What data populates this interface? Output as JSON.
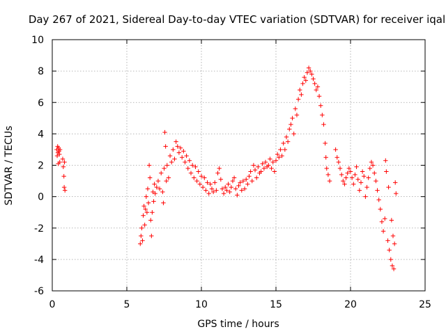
{
  "chart_data": {
    "type": "scatter",
    "title": "Day 267 of 2021, Sidereal Day-to-day VTEC variation (SDTVAR) for receiver iqal",
    "xlabel": "GPS time / hours",
    "ylabel": "SDTVAR / TECUs",
    "xlim": [
      0,
      25
    ],
    "ylim": [
      -6,
      10
    ],
    "x_ticks": [
      0,
      5,
      10,
      15,
      20,
      25
    ],
    "x_tick_labels": [
      "0",
      "5",
      "10",
      "15",
      "20",
      "25"
    ],
    "y_ticks": [
      -6,
      -4,
      -2,
      0,
      2,
      4,
      6,
      8,
      10
    ],
    "y_tick_labels": [
      "-6",
      "-4",
      "-2",
      "0",
      "2",
      "4",
      "6",
      "8",
      "10"
    ],
    "grid": true,
    "marker": "+",
    "color": "#ff0000",
    "series": [
      {
        "name": "SDTVAR",
        "points": [
          [
            0.3,
            3.0
          ],
          [
            0.33,
            2.6
          ],
          [
            0.36,
            3.2
          ],
          [
            0.38,
            2.8
          ],
          [
            0.4,
            2.1
          ],
          [
            0.42,
            3.1
          ],
          [
            0.45,
            2.9
          ],
          [
            0.48,
            2.7
          ],
          [
            0.5,
            2.2
          ],
          [
            0.52,
            3.0
          ],
          [
            0.7,
            2.4
          ],
          [
            0.74,
            1.9
          ],
          [
            0.78,
            1.3
          ],
          [
            0.8,
            0.6
          ],
          [
            0.82,
            2.2
          ],
          [
            0.85,
            0.4
          ],
          [
            5.9,
            -3.0
          ],
          [
            5.95,
            -2.5
          ],
          [
            6.0,
            -2.0
          ],
          [
            6.05,
            -2.8
          ],
          [
            6.1,
            -1.2
          ],
          [
            6.15,
            -0.6
          ],
          [
            6.2,
            -1.8
          ],
          [
            6.25,
            -0.8
          ],
          [
            6.3,
            0.0
          ],
          [
            6.35,
            -1.0
          ],
          [
            6.4,
            0.5
          ],
          [
            6.45,
            -0.4
          ],
          [
            6.5,
            2.0
          ],
          [
            6.55,
            1.2
          ],
          [
            6.6,
            -1.5
          ],
          [
            6.65,
            -2.5
          ],
          [
            6.7,
            -1.0
          ],
          [
            6.75,
            0.3
          ],
          [
            6.8,
            -0.3
          ],
          [
            6.85,
            0.8
          ],
          [
            6.9,
            0.2
          ],
          [
            7.0,
            0.6
          ],
          [
            7.1,
            1.0
          ],
          [
            7.2,
            0.5
          ],
          [
            7.3,
            1.5
          ],
          [
            7.4,
            0.3
          ],
          [
            7.45,
            -0.4
          ],
          [
            7.5,
            1.8
          ],
          [
            7.55,
            4.1
          ],
          [
            7.6,
            3.2
          ],
          [
            7.65,
            1.0
          ],
          [
            7.7,
            2.0
          ],
          [
            7.8,
            1.2
          ],
          [
            7.9,
            2.6
          ],
          [
            8.0,
            2.2
          ],
          [
            8.1,
            3.0
          ],
          [
            8.2,
            2.4
          ],
          [
            8.3,
            3.5
          ],
          [
            8.4,
            3.2
          ],
          [
            8.5,
            2.8
          ],
          [
            8.6,
            3.1
          ],
          [
            8.7,
            2.5
          ],
          [
            8.8,
            2.9
          ],
          [
            8.9,
            2.2
          ],
          [
            9.0,
            2.6
          ],
          [
            9.1,
            1.8
          ],
          [
            9.2,
            2.3
          ],
          [
            9.3,
            1.5
          ],
          [
            9.4,
            2.0
          ],
          [
            9.5,
            1.2
          ],
          [
            9.6,
            1.9
          ],
          [
            9.7,
            1.0
          ],
          [
            9.8,
            1.6
          ],
          [
            9.9,
            0.8
          ],
          [
            10.0,
            1.3
          ],
          [
            10.1,
            0.6
          ],
          [
            10.2,
            1.2
          ],
          [
            10.3,
            0.4
          ],
          [
            10.4,
            0.9
          ],
          [
            10.5,
            0.2
          ],
          [
            10.6,
            0.8
          ],
          [
            10.7,
            0.5
          ],
          [
            10.8,
            0.3
          ],
          [
            10.9,
            0.9
          ],
          [
            11.0,
            0.4
          ],
          [
            11.1,
            1.5
          ],
          [
            11.2,
            1.8
          ],
          [
            11.3,
            1.1
          ],
          [
            11.4,
            0.5
          ],
          [
            11.5,
            0.2
          ],
          [
            11.6,
            0.6
          ],
          [
            11.7,
            0.4
          ],
          [
            11.8,
            0.8
          ],
          [
            11.9,
            0.3
          ],
          [
            12.0,
            0.6
          ],
          [
            12.1,
            1.0
          ],
          [
            12.2,
            1.2
          ],
          [
            12.3,
            0.5
          ],
          [
            12.4,
            0.1
          ],
          [
            12.5,
            0.7
          ],
          [
            12.6,
            0.9
          ],
          [
            12.7,
            0.4
          ],
          [
            12.8,
            1.0
          ],
          [
            12.9,
            0.5
          ],
          [
            13.0,
            1.1
          ],
          [
            13.1,
            0.8
          ],
          [
            13.2,
            1.3
          ],
          [
            13.3,
            1.6
          ],
          [
            13.4,
            1.0
          ],
          [
            13.5,
            2.0
          ],
          [
            13.6,
            1.7
          ],
          [
            13.7,
            1.2
          ],
          [
            13.8,
            1.9
          ],
          [
            13.9,
            1.5
          ],
          [
            14.0,
            1.6
          ],
          [
            14.1,
            2.1
          ],
          [
            14.2,
            1.8
          ],
          [
            14.3,
            2.2
          ],
          [
            14.4,
            1.9
          ],
          [
            14.5,
            2.0
          ],
          [
            14.6,
            2.4
          ],
          [
            14.7,
            1.8
          ],
          [
            14.8,
            2.2
          ],
          [
            14.9,
            1.6
          ],
          [
            15.0,
            2.3
          ],
          [
            15.1,
            2.7
          ],
          [
            15.2,
            2.5
          ],
          [
            15.3,
            3.0
          ],
          [
            15.4,
            2.6
          ],
          [
            15.5,
            3.4
          ],
          [
            15.6,
            3.0
          ],
          [
            15.7,
            3.8
          ],
          [
            15.8,
            3.5
          ],
          [
            15.9,
            4.3
          ],
          [
            16.0,
            4.6
          ],
          [
            16.1,
            5.0
          ],
          [
            16.2,
            4.0
          ],
          [
            16.3,
            5.6
          ],
          [
            16.4,
            5.2
          ],
          [
            16.5,
            6.2
          ],
          [
            16.6,
            6.8
          ],
          [
            16.7,
            6.5
          ],
          [
            16.8,
            7.2
          ],
          [
            16.9,
            7.6
          ],
          [
            17.0,
            7.4
          ],
          [
            17.1,
            7.9
          ],
          [
            17.2,
            8.2
          ],
          [
            17.3,
            8.0
          ],
          [
            17.4,
            7.8
          ],
          [
            17.5,
            7.5
          ],
          [
            17.6,
            7.2
          ],
          [
            17.7,
            6.8
          ],
          [
            17.8,
            7.0
          ],
          [
            17.9,
            6.4
          ],
          [
            18.0,
            5.8
          ],
          [
            18.1,
            5.2
          ],
          [
            18.2,
            4.6
          ],
          [
            18.3,
            3.4
          ],
          [
            18.35,
            2.5
          ],
          [
            18.4,
            1.8
          ],
          [
            18.5,
            1.4
          ],
          [
            18.6,
            1.0
          ],
          [
            19.0,
            3.0
          ],
          [
            19.1,
            2.5
          ],
          [
            19.2,
            2.2
          ],
          [
            19.3,
            1.8
          ],
          [
            19.4,
            1.4
          ],
          [
            19.5,
            1.0
          ],
          [
            19.6,
            0.8
          ],
          [
            19.7,
            1.2
          ],
          [
            19.8,
            1.5
          ],
          [
            19.9,
            1.8
          ],
          [
            20.0,
            1.6
          ],
          [
            20.1,
            1.2
          ],
          [
            20.2,
            0.8
          ],
          [
            20.3,
            1.4
          ],
          [
            20.4,
            1.9
          ],
          [
            20.5,
            1.1
          ],
          [
            20.6,
            0.4
          ],
          [
            20.7,
            0.9
          ],
          [
            20.8,
            1.6
          ],
          [
            20.9,
            1.3
          ],
          [
            21.0,
            0.0
          ],
          [
            21.1,
            0.6
          ],
          [
            21.2,
            1.2
          ],
          [
            21.3,
            1.8
          ],
          [
            21.4,
            2.2
          ],
          [
            21.5,
            2.0
          ],
          [
            21.6,
            1.5
          ],
          [
            21.7,
            1.0
          ],
          [
            21.8,
            0.4
          ],
          [
            21.9,
            -0.2
          ],
          [
            22.0,
            -0.8
          ],
          [
            22.1,
            -1.6
          ],
          [
            22.2,
            -2.2
          ],
          [
            22.3,
            -1.4
          ],
          [
            22.35,
            2.3
          ],
          [
            22.4,
            1.6
          ],
          [
            22.5,
            -2.8
          ],
          [
            22.55,
            0.6
          ],
          [
            22.6,
            -3.4
          ],
          [
            22.7,
            -4.0
          ],
          [
            22.75,
            -1.5
          ],
          [
            22.8,
            -4.4
          ],
          [
            22.85,
            -2.5
          ],
          [
            22.9,
            -4.6
          ],
          [
            22.95,
            -3.0
          ],
          [
            23.0,
            0.9
          ],
          [
            23.05,
            0.2
          ]
        ]
      }
    ]
  }
}
